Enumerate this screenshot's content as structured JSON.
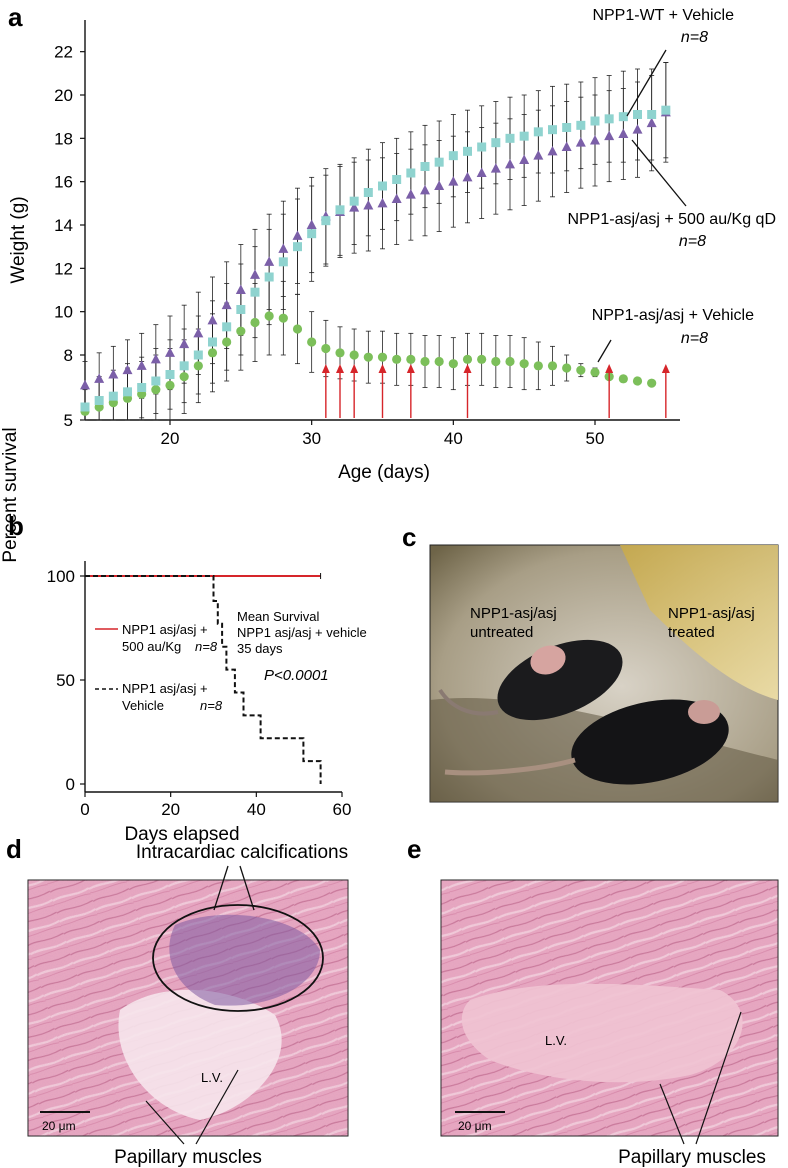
{
  "panels": {
    "a": {
      "letter": "a",
      "xlabel": "Age (days)",
      "ylabel": "Weight (g)",
      "xticks": [
        "20",
        "30",
        "40",
        "50"
      ],
      "yticks": [
        "5",
        "8",
        "10",
        "12",
        "14",
        "16",
        "18",
        "20",
        "22"
      ],
      "annotations": {
        "wt_label": "NPP1-WT + Vehicle",
        "wt_n": "n=8",
        "treated_label": "NPP1-asj/asj + 500 au/Kg qD",
        "treated_n": "n=8",
        "vehicle_label": "NPP1-asj/asj + Vehicle",
        "vehicle_n": "n=8"
      }
    },
    "b": {
      "letter": "b",
      "xlabel": "Days elapsed",
      "ylabel": "Percent survival",
      "xticks": [
        "0",
        "20",
        "40",
        "60"
      ],
      "yticks": [
        "0",
        "50",
        "100"
      ],
      "legend_treated": [
        "NPP1 asj/asj +",
        "500 au/Kg",
        "n=8"
      ],
      "legend_vehicle": [
        "NPP1 asj/asj +",
        "Vehicle",
        "n=8"
      ],
      "mean_survival": [
        "Mean Survival",
        "NPP1 asj/asj + vehicle",
        "35 days"
      ],
      "pvalue": "P<0.0001"
    },
    "c": {
      "letter": "c",
      "label_untreated": [
        "NPP1-asj/asj",
        "untreated"
      ],
      "label_treated": [
        "NPP1-asj/asj",
        "treated"
      ]
    },
    "d": {
      "letter": "d",
      "title": "Intracardiac calcifications",
      "lv": "L.V.",
      "scale": "20 μm",
      "caption": "Papillary muscles"
    },
    "e": {
      "letter": "e",
      "lv": "L.V.",
      "scale": "20 μm",
      "caption": "Papillary muscles"
    }
  },
  "colors": {
    "wt": "#8fd3cf",
    "treated": "#7b5fa8",
    "vehicle": "#7cbf5a",
    "arrow": "#d6252a",
    "survival_treated": "#d6252a",
    "tissue": "#e9a9c2"
  },
  "chart_data": [
    {
      "type": "scatter",
      "panel": "a",
      "xlabel": "Age (days)",
      "ylabel": "Weight (g)",
      "xlim": [
        14,
        56
      ],
      "ylim": [
        5,
        23
      ],
      "series": [
        {
          "name": "NPP1-WT + Vehicle",
          "n": "n=8",
          "marker": "square",
          "x": [
            14,
            15,
            16,
            17,
            18,
            19,
            20,
            21,
            22,
            23,
            24,
            25,
            26,
            27,
            28,
            29,
            30,
            31,
            32,
            33,
            34,
            35,
            36,
            37,
            38,
            39,
            40,
            41,
            42,
            43,
            44,
            45,
            46,
            47,
            48,
            49,
            50,
            51,
            52,
            53,
            54,
            55
          ],
          "y": [
            5.6,
            5.9,
            6.1,
            6.3,
            6.5,
            6.8,
            7.1,
            7.5,
            8.0,
            8.6,
            9.3,
            10.1,
            10.9,
            11.6,
            12.3,
            13.0,
            13.6,
            14.2,
            14.7,
            15.1,
            15.5,
            15.8,
            16.1,
            16.4,
            16.7,
            16.9,
            17.2,
            17.4,
            17.6,
            17.8,
            18.0,
            18.1,
            18.3,
            18.4,
            18.5,
            18.6,
            18.8,
            18.9,
            19.0,
            19.1,
            19.1,
            19.3
          ],
          "err": [
            0.9,
            1.1,
            1.2,
            1.3,
            1.4,
            1.5,
            1.6,
            1.7,
            1.8,
            1.9,
            2.0,
            2.1,
            2.1,
            2.2,
            2.2,
            2.2,
            2.2,
            2.1,
            2.1,
            2.0,
            2.0,
            2.0,
            1.9,
            1.9,
            1.9,
            1.9,
            1.9,
            1.9,
            1.9,
            1.9,
            1.9,
            1.9,
            1.9,
            2.0,
            2.0,
            2.0,
            2.0,
            2.0,
            2.1,
            2.1,
            2.1,
            2.2
          ]
        },
        {
          "name": "NPP1-asj/asj + 500 au/Kg qD",
          "n": "n=8",
          "marker": "triangle",
          "x": [
            14,
            15,
            16,
            17,
            18,
            19,
            20,
            21,
            22,
            23,
            24,
            25,
            26,
            27,
            28,
            29,
            30,
            31,
            32,
            33,
            34,
            35,
            36,
            37,
            38,
            39,
            40,
            41,
            42,
            43,
            44,
            45,
            46,
            47,
            48,
            49,
            50,
            51,
            52,
            53,
            54,
            55
          ],
          "y": [
            6.6,
            6.9,
            7.1,
            7.3,
            7.5,
            7.8,
            8.1,
            8.5,
            9.0,
            9.6,
            10.3,
            11.0,
            11.7,
            12.3,
            12.9,
            13.5,
            14.0,
            14.4,
            14.6,
            14.8,
            14.9,
            15.0,
            15.2,
            15.4,
            15.6,
            15.8,
            16.0,
            16.2,
            16.4,
            16.6,
            16.8,
            17.0,
            17.2,
            17.4,
            17.6,
            17.8,
            17.9,
            18.1,
            18.2,
            18.4,
            18.7,
            19.2
          ],
          "err": [
            1.1,
            1.2,
            1.3,
            1.4,
            1.5,
            1.6,
            1.7,
            1.8,
            1.9,
            2.0,
            2.0,
            2.1,
            2.1,
            2.2,
            2.2,
            2.2,
            2.2,
            2.2,
            2.1,
            2.1,
            2.1,
            2.1,
            2.1,
            2.1,
            2.1,
            2.1,
            2.1,
            2.1,
            2.1,
            2.1,
            2.1,
            2.1,
            2.1,
            2.1,
            2.1,
            2.1,
            2.1,
            2.1,
            2.1,
            2.2,
            2.2,
            2.3
          ]
        },
        {
          "name": "NPP1-asj/asj + Vehicle",
          "n": "n=8",
          "marker": "circle",
          "x": [
            14,
            15,
            16,
            17,
            18,
            19,
            20,
            21,
            22,
            23,
            24,
            25,
            26,
            27,
            28,
            29,
            30,
            31,
            32,
            33,
            34,
            35,
            36,
            37,
            38,
            39,
            40,
            41,
            42,
            43,
            44,
            45,
            46,
            47,
            48,
            49,
            50,
            51,
            52,
            53,
            54
          ],
          "y": [
            5.4,
            5.6,
            5.8,
            6.0,
            6.2,
            6.4,
            6.6,
            7.0,
            7.5,
            8.1,
            8.6,
            9.1,
            9.5,
            9.8,
            9.7,
            9.2,
            8.6,
            8.3,
            8.1,
            8.0,
            7.9,
            7.9,
            7.8,
            7.8,
            7.7,
            7.7,
            7.6,
            7.8,
            7.8,
            7.7,
            7.7,
            7.6,
            7.5,
            7.5,
            7.4,
            7.3,
            7.2,
            7.0,
            6.9,
            6.8,
            6.7
          ],
          "err": [
            1.0,
            1.2,
            1.3,
            1.4,
            1.5,
            1.6,
            1.7,
            1.7,
            1.7,
            1.8,
            1.8,
            1.8,
            1.8,
            1.8,
            1.7,
            1.6,
            1.4,
            1.3,
            1.2,
            1.2,
            1.2,
            1.2,
            1.2,
            1.2,
            1.2,
            1.2,
            1.2,
            1.2,
            1.2,
            1.2,
            1.2,
            1.2,
            1.1,
            0.9,
            0.6,
            0.3,
            0.2,
            0,
            0,
            0,
            0
          ]
        }
      ],
      "arrows_x": [
        31,
        32,
        33,
        35,
        37,
        41,
        51,
        55
      ]
    },
    {
      "type": "line",
      "panel": "b",
      "xlabel": "Days elapsed",
      "ylabel": "Percent survival",
      "xlim": [
        0,
        60
      ],
      "ylim": [
        0,
        100
      ],
      "series": [
        {
          "name": "NPP1 asj/asj + 500 au/Kg n=8",
          "style": "solid",
          "x": [
            0,
            55
          ],
          "y": [
            100,
            100
          ]
        },
        {
          "name": "NPP1 asj/asj + Vehicle n=8",
          "style": "dashed",
          "steps": [
            [
              0,
              100
            ],
            [
              30,
              100
            ],
            [
              30,
              88
            ],
            [
              31,
              88
            ],
            [
              31,
              77
            ],
            [
              32,
              77
            ],
            [
              32,
              66
            ],
            [
              33,
              66
            ],
            [
              33,
              55
            ],
            [
              35,
              55
            ],
            [
              35,
              44
            ],
            [
              37,
              44
            ],
            [
              37,
              33
            ],
            [
              41,
              33
            ],
            [
              41,
              22
            ],
            [
              51,
              22
            ],
            [
              51,
              11
            ],
            [
              55,
              11
            ],
            [
              55,
              0
            ]
          ]
        }
      ]
    }
  ]
}
